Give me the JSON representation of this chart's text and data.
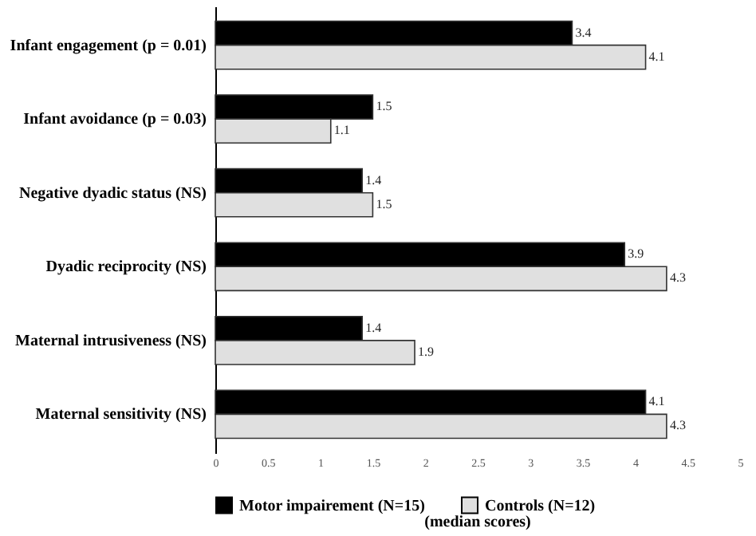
{
  "chart_data": {
    "type": "bar",
    "orientation": "horizontal",
    "categories": [
      "Infant engagement (p = 0.01)",
      "Infant avoidance (p = 0.03)",
      "Negative dyadic status  (NS)",
      "Dyadic reciprocity  (NS)",
      "Maternal  intrusiveness  (NS)",
      "Maternal sensitivity  (NS)"
    ],
    "series": [
      {
        "name": "Motor impairement (N=15)",
        "color": "#000000",
        "values": [
          3.4,
          1.5,
          1.4,
          3.9,
          1.4,
          4.1
        ]
      },
      {
        "name": "Controls (N=12)",
        "color": "#e0e0e0",
        "values": [
          4.1,
          1.1,
          1.5,
          4.3,
          1.9,
          4.3
        ]
      }
    ],
    "xlim": [
      0,
      5
    ],
    "xticks": [
      0,
      0.5,
      1,
      1.5,
      2,
      2.5,
      3,
      3.5,
      4,
      4.5,
      5
    ],
    "data_labels": true,
    "grid": false,
    "legend": "bottom",
    "annotations": [
      "(median scores)"
    ]
  }
}
